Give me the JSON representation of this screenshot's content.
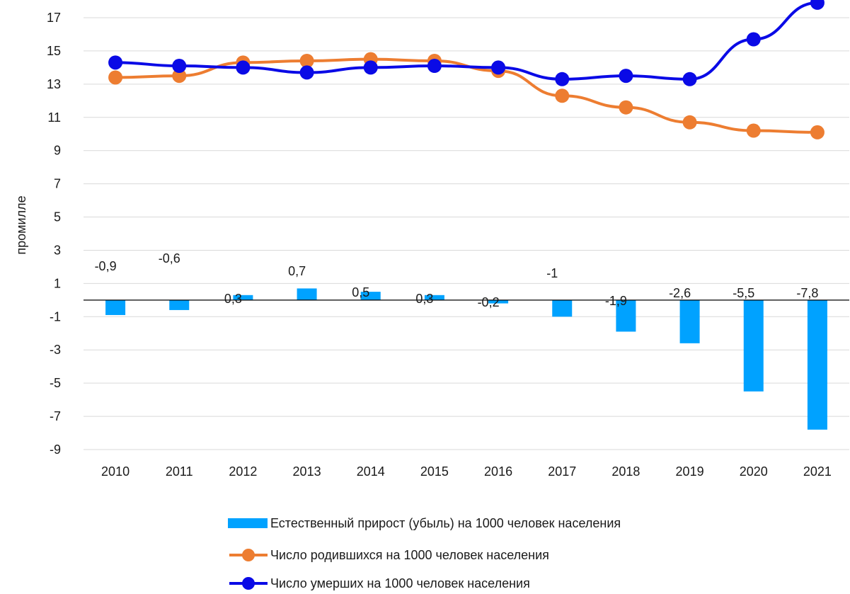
{
  "chart_data": {
    "type": "bar+line",
    "title": "",
    "xlabel": "",
    "ylabel": "промилле",
    "ylim": [
      -9,
      18
    ],
    "yticks": [
      17,
      15,
      13,
      11,
      9,
      7,
      5,
      3,
      1,
      -1,
      -3,
      -5,
      -7,
      -9
    ],
    "grid": true,
    "legend_position": "bottom",
    "categories": [
      "2010",
      "2011",
      "2012",
      "2013",
      "2014",
      "2015",
      "2016",
      "2017",
      "2018",
      "2019",
      "2020",
      "2021"
    ],
    "series": [
      {
        "name": "Естественный прирост (убыль) на 1000 человек населения",
        "type": "bar",
        "color": "#00a2ff",
        "values": [
          -0.9,
          -0.6,
          0.3,
          0.7,
          0.5,
          0.3,
          -0.2,
          -1,
          -1.9,
          -2.6,
          -5.5,
          -7.8
        ],
        "labels": [
          "-0,9",
          "-0,6",
          "0,3",
          "0,7",
          "0,5",
          "0,3",
          "-0,2",
          "-1",
          "-1,9",
          "-2,6",
          "-5,5",
          "-7,8"
        ]
      },
      {
        "name": "Число родившихся на 1000 человек населения",
        "type": "line",
        "color": "#ed7d31",
        "values": [
          13.4,
          13.5,
          14.3,
          14.4,
          14.5,
          14.4,
          13.8,
          12.3,
          11.6,
          10.7,
          10.2,
          10.1
        ]
      },
      {
        "name": "Число умерших на 1000 человек населения",
        "type": "line",
        "color": "#0a0ae6",
        "values": [
          14.3,
          14.1,
          14.0,
          13.7,
          14.0,
          14.1,
          14.0,
          13.3,
          13.5,
          13.3,
          15.7,
          17.9
        ]
      }
    ]
  }
}
